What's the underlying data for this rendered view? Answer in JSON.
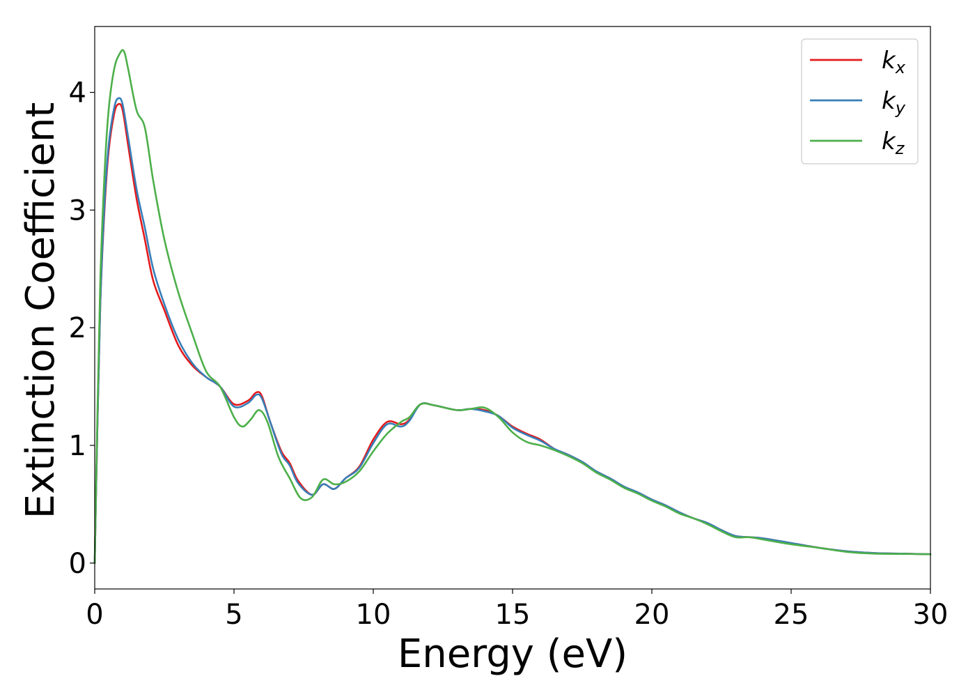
{
  "chart_data": {
    "type": "line",
    "xlabel": "Energy (eV)",
    "ylabel": "Extinction Coefficient",
    "xlim": [
      0,
      30
    ],
    "ylim": [
      -0.22,
      4.56
    ],
    "xticks": [
      0,
      5,
      10,
      15,
      20,
      25,
      30
    ],
    "yticks": [
      0,
      1,
      2,
      3,
      4
    ],
    "xtick_labels": [
      "0",
      "5",
      "10",
      "15",
      "20",
      "25",
      "30"
    ],
    "ytick_labels": [
      "0",
      "1",
      "2",
      "3",
      "4"
    ],
    "grid": false,
    "legend_position": "top-right",
    "series": [
      {
        "name": "k",
        "sub": "x",
        "color": "#e41a1c",
        "points": [
          [
            0,
            0.0
          ],
          [
            0.1,
            1.2
          ],
          [
            0.2,
            2.2
          ],
          [
            0.35,
            3.0
          ],
          [
            0.5,
            3.5
          ],
          [
            0.7,
            3.82
          ],
          [
            0.85,
            3.9
          ],
          [
            1.0,
            3.85
          ],
          [
            1.2,
            3.55
          ],
          [
            1.5,
            3.1
          ],
          [
            1.8,
            2.75
          ],
          [
            2.1,
            2.4
          ],
          [
            2.5,
            2.15
          ],
          [
            3.0,
            1.85
          ],
          [
            3.5,
            1.68
          ],
          [
            4.0,
            1.58
          ],
          [
            4.5,
            1.5
          ],
          [
            5.0,
            1.35
          ],
          [
            5.5,
            1.38
          ],
          [
            5.8,
            1.45
          ],
          [
            6.0,
            1.42
          ],
          [
            6.3,
            1.2
          ],
          [
            6.7,
            0.95
          ],
          [
            7.0,
            0.85
          ],
          [
            7.3,
            0.7
          ],
          [
            7.8,
            0.58
          ],
          [
            8.2,
            0.67
          ],
          [
            8.6,
            0.63
          ],
          [
            9.0,
            0.72
          ],
          [
            9.5,
            0.82
          ],
          [
            10.0,
            1.05
          ],
          [
            10.5,
            1.2
          ],
          [
            11.0,
            1.18
          ],
          [
            11.3,
            1.22
          ],
          [
            11.7,
            1.35
          ],
          [
            12.2,
            1.34
          ],
          [
            13.0,
            1.3
          ],
          [
            13.5,
            1.31
          ],
          [
            14.0,
            1.3
          ],
          [
            14.5,
            1.25
          ],
          [
            15.0,
            1.16
          ],
          [
            15.5,
            1.1
          ],
          [
            16.0,
            1.05
          ],
          [
            16.5,
            0.97
          ],
          [
            17.0,
            0.92
          ],
          [
            17.5,
            0.86
          ],
          [
            18.0,
            0.78
          ],
          [
            18.5,
            0.72
          ],
          [
            19.0,
            0.65
          ],
          [
            19.5,
            0.6
          ],
          [
            20.0,
            0.54
          ],
          [
            20.5,
            0.49
          ],
          [
            21.0,
            0.43
          ],
          [
            21.5,
            0.38
          ],
          [
            22.0,
            0.34
          ],
          [
            22.5,
            0.28
          ],
          [
            23.0,
            0.23
          ],
          [
            23.5,
            0.22
          ],
          [
            24.0,
            0.21
          ],
          [
            25.0,
            0.17
          ],
          [
            26.0,
            0.13
          ],
          [
            27.0,
            0.1
          ],
          [
            28.0,
            0.085
          ],
          [
            29.0,
            0.08
          ],
          [
            30.0,
            0.075
          ]
        ]
      },
      {
        "name": "k",
        "sub": "y",
        "color": "#377eb8",
        "points": [
          [
            0,
            0.0
          ],
          [
            0.1,
            1.2
          ],
          [
            0.2,
            2.2
          ],
          [
            0.35,
            3.05
          ],
          [
            0.5,
            3.55
          ],
          [
            0.7,
            3.87
          ],
          [
            0.85,
            3.95
          ],
          [
            1.0,
            3.9
          ],
          [
            1.2,
            3.62
          ],
          [
            1.5,
            3.18
          ],
          [
            1.8,
            2.85
          ],
          [
            2.1,
            2.5
          ],
          [
            2.5,
            2.2
          ],
          [
            3.0,
            1.9
          ],
          [
            3.5,
            1.7
          ],
          [
            4.0,
            1.58
          ],
          [
            4.5,
            1.5
          ],
          [
            5.0,
            1.33
          ],
          [
            5.5,
            1.36
          ],
          [
            5.8,
            1.43
          ],
          [
            6.0,
            1.4
          ],
          [
            6.3,
            1.2
          ],
          [
            6.7,
            0.93
          ],
          [
            7.0,
            0.83
          ],
          [
            7.3,
            0.68
          ],
          [
            7.8,
            0.58
          ],
          [
            8.2,
            0.67
          ],
          [
            8.6,
            0.63
          ],
          [
            9.0,
            0.72
          ],
          [
            9.5,
            0.81
          ],
          [
            10.0,
            1.02
          ],
          [
            10.5,
            1.18
          ],
          [
            11.0,
            1.16
          ],
          [
            11.3,
            1.21
          ],
          [
            11.7,
            1.35
          ],
          [
            12.2,
            1.34
          ],
          [
            13.0,
            1.3
          ],
          [
            13.5,
            1.31
          ],
          [
            14.0,
            1.29
          ],
          [
            14.5,
            1.25
          ],
          [
            15.0,
            1.15
          ],
          [
            15.5,
            1.09
          ],
          [
            16.0,
            1.04
          ],
          [
            16.5,
            0.97
          ],
          [
            17.0,
            0.92
          ],
          [
            17.5,
            0.86
          ],
          [
            18.0,
            0.78
          ],
          [
            18.5,
            0.72
          ],
          [
            19.0,
            0.65
          ],
          [
            19.5,
            0.6
          ],
          [
            20.0,
            0.54
          ],
          [
            20.5,
            0.49
          ],
          [
            21.0,
            0.43
          ],
          [
            21.5,
            0.38
          ],
          [
            22.0,
            0.34
          ],
          [
            22.5,
            0.28
          ],
          [
            23.0,
            0.23
          ],
          [
            23.5,
            0.22
          ],
          [
            24.0,
            0.21
          ],
          [
            25.0,
            0.17
          ],
          [
            26.0,
            0.13
          ],
          [
            27.0,
            0.1
          ],
          [
            28.0,
            0.085
          ],
          [
            29.0,
            0.08
          ],
          [
            30.0,
            0.075
          ]
        ]
      },
      {
        "name": "k",
        "sub": "z",
        "color": "#4daf4a",
        "points": [
          [
            0,
            0.0
          ],
          [
            0.1,
            1.3
          ],
          [
            0.2,
            2.4
          ],
          [
            0.35,
            3.3
          ],
          [
            0.5,
            3.85
          ],
          [
            0.7,
            4.2
          ],
          [
            0.9,
            4.33
          ],
          [
            1.05,
            4.35
          ],
          [
            1.2,
            4.2
          ],
          [
            1.5,
            3.85
          ],
          [
            1.8,
            3.7
          ],
          [
            2.1,
            3.25
          ],
          [
            2.5,
            2.75
          ],
          [
            3.0,
            2.3
          ],
          [
            3.5,
            1.95
          ],
          [
            4.0,
            1.63
          ],
          [
            4.5,
            1.5
          ],
          [
            5.0,
            1.24
          ],
          [
            5.3,
            1.16
          ],
          [
            5.6,
            1.22
          ],
          [
            5.9,
            1.3
          ],
          [
            6.2,
            1.2
          ],
          [
            6.6,
            0.9
          ],
          [
            7.0,
            0.72
          ],
          [
            7.4,
            0.55
          ],
          [
            7.8,
            0.56
          ],
          [
            8.2,
            0.71
          ],
          [
            8.6,
            0.67
          ],
          [
            9.0,
            0.69
          ],
          [
            9.5,
            0.78
          ],
          [
            10.0,
            0.95
          ],
          [
            10.5,
            1.1
          ],
          [
            11.0,
            1.2
          ],
          [
            11.3,
            1.24
          ],
          [
            11.7,
            1.35
          ],
          [
            12.2,
            1.34
          ],
          [
            13.0,
            1.3
          ],
          [
            13.5,
            1.31
          ],
          [
            14.0,
            1.32
          ],
          [
            14.5,
            1.24
          ],
          [
            15.0,
            1.11
          ],
          [
            15.5,
            1.03
          ],
          [
            16.0,
            1.0
          ],
          [
            16.5,
            0.96
          ],
          [
            17.0,
            0.91
          ],
          [
            17.5,
            0.85
          ],
          [
            18.0,
            0.77
          ],
          [
            18.5,
            0.71
          ],
          [
            19.0,
            0.64
          ],
          [
            19.5,
            0.59
          ],
          [
            20.0,
            0.53
          ],
          [
            20.5,
            0.48
          ],
          [
            21.0,
            0.42
          ],
          [
            21.5,
            0.38
          ],
          [
            22.0,
            0.33
          ],
          [
            22.5,
            0.27
          ],
          [
            23.0,
            0.22
          ],
          [
            23.5,
            0.22
          ],
          [
            24.0,
            0.2
          ],
          [
            25.0,
            0.16
          ],
          [
            26.0,
            0.13
          ],
          [
            27.0,
            0.095
          ],
          [
            28.0,
            0.08
          ],
          [
            29.0,
            0.078
          ],
          [
            30.0,
            0.075
          ]
        ]
      }
    ]
  }
}
